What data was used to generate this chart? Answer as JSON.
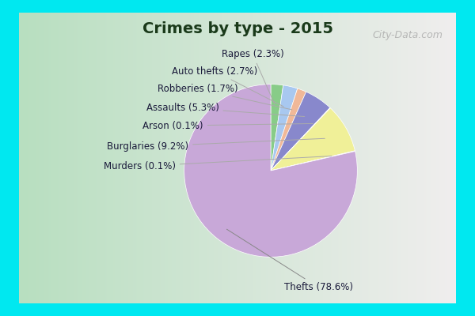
{
  "title": "Crimes by type - 2015",
  "title_fontsize": 14,
  "title_color": "#1a3a1a",
  "label_fontsize": 8.5,
  "label_color": "#1a1a3a",
  "background_border": "#00e8f0",
  "background_grad_left": "#b8dfc0",
  "background_grad_right": "#f0eeee",
  "border_thickness": 0.04,
  "plot_labels": [
    "Rapes",
    "Auto thefts",
    "Robberies",
    "Assaults",
    "Arson",
    "Burglaries",
    "Murders",
    "Thefts"
  ],
  "plot_sizes": [
    2.3,
    2.7,
    1.7,
    5.3,
    0.1,
    9.2,
    0.1,
    78.6
  ],
  "plot_colors": [
    "#88cc88",
    "#a8c8f0",
    "#f0b898",
    "#8888cc",
    "#f0f0c0",
    "#f0f098",
    "#d8d8d8",
    "#c8a8d8"
  ],
  "watermark": "City-Data.com",
  "watermark_fontsize": 9,
  "startangle": 90,
  "label_texts": [
    "Rapes (2.3%)",
    "Auto thefts (2.7%)",
    "Robberies (1.7%)",
    "Assaults (5.3%)",
    "Arson (0.1%)",
    "Burglaries (9.2%)",
    "Murders (0.1%)",
    "Thefts (78.6%)"
  ]
}
